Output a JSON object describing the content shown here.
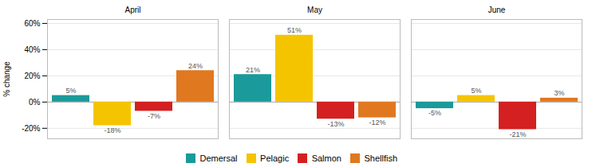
{
  "chart_data": {
    "type": "bar",
    "categories": [
      "April",
      "May",
      "June"
    ],
    "series": [
      {
        "name": "Demersal",
        "color": "#1a9a9a",
        "values": [
          5,
          21,
          -5
        ],
        "value_labels": [
          "5%",
          "21%",
          "-5%"
        ]
      },
      {
        "name": "Pelagic",
        "color": "#f5c400",
        "values": [
          -18,
          51,
          5
        ],
        "value_labels": [
          "-18%",
          "51%",
          "5%"
        ]
      },
      {
        "name": "Salmon",
        "color": "#d42020",
        "values": [
          -7,
          -13,
          -21
        ],
        "value_labels": [
          "-7%",
          "-13%",
          "-21%"
        ]
      },
      {
        "name": "Shellfish",
        "color": "#e07820",
        "values": [
          24,
          -12,
          3
        ],
        "value_labels": [
          "24%",
          "-12%",
          "3%"
        ]
      }
    ],
    "ylabel": "% change",
    "ylim": [
      -28,
      63
    ],
    "yticks": [
      {
        "value": -20,
        "label": "-20%"
      },
      {
        "value": 0,
        "label": "0%"
      },
      {
        "value": 20,
        "label": "20%"
      },
      {
        "value": 40,
        "label": "40%"
      },
      {
        "value": 60,
        "label": "60%"
      }
    ],
    "grid": true,
    "legend": "bottom",
    "data_labels": true
  }
}
